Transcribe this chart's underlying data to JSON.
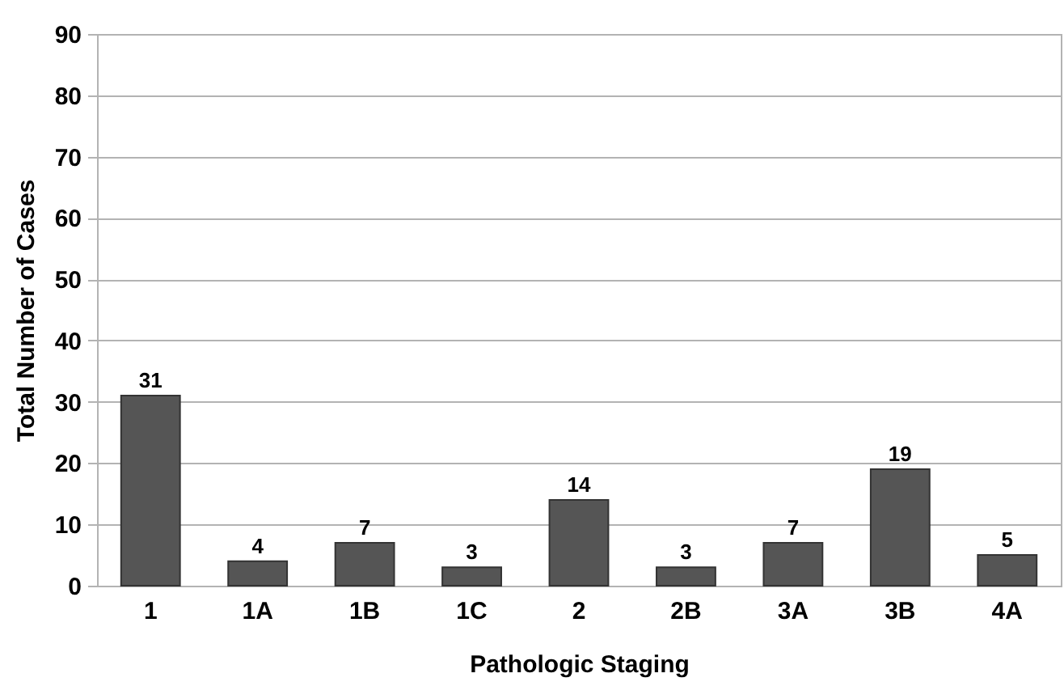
{
  "chart_data": {
    "type": "bar",
    "xlabel": "Pathologic Staging",
    "ylabel": "Total Number of Cases",
    "categories": [
      "1",
      "1A",
      "1B",
      "1C",
      "2",
      "2B",
      "3A",
      "3B",
      "4A"
    ],
    "values": [
      31,
      4,
      7,
      3,
      14,
      3,
      7,
      19,
      5
    ],
    "color": "#555555",
    "ylim": [
      0,
      90
    ],
    "yticks": [
      0,
      10,
      20,
      30,
      40,
      50,
      60,
      70,
      80,
      90
    ],
    "grid": "y",
    "data_labels": true
  }
}
